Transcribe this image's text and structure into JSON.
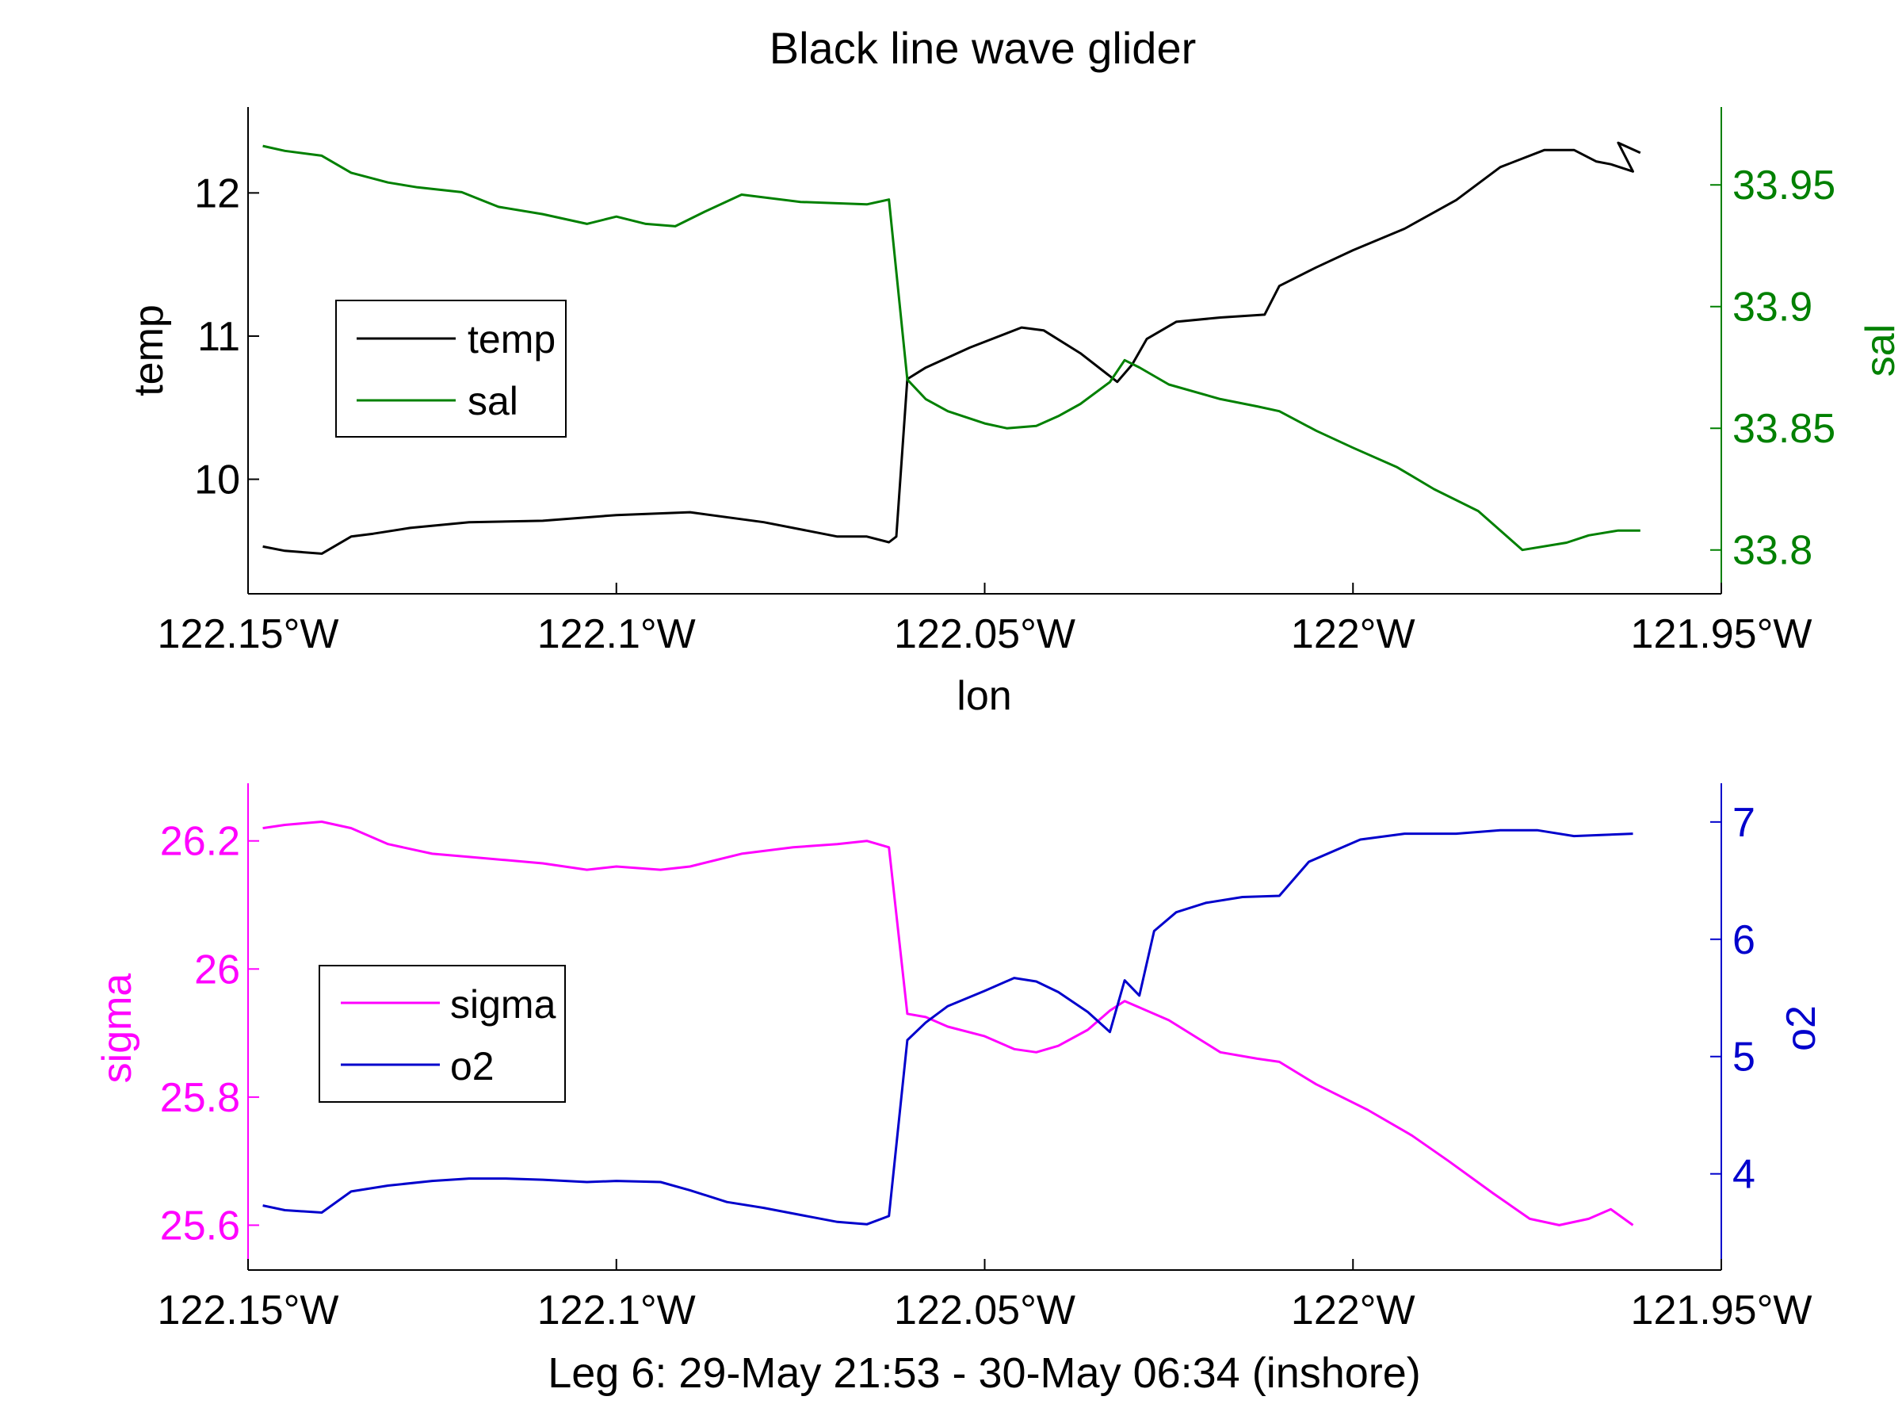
{
  "title": "Black line wave glider",
  "caption": "Leg 6: 29-May 21:53 - 30-May 06:34 (inshore)",
  "colors": {
    "temp": "#000000",
    "sal": "#008000",
    "sigma": "#ff00ff",
    "o2": "#0000cc",
    "axis": "#000000"
  },
  "chart_data": [
    {
      "type": "line",
      "xlabel": "lon",
      "xlim": [
        -122.15,
        -121.95
      ],
      "xticks": [
        -122.15,
        -122.1,
        -122.05,
        -122.0,
        -121.95
      ],
      "xtick_labels": [
        "122.15°W",
        "122.1°W",
        "122.05°W",
        "122°W",
        "121.95°W"
      ],
      "left_axis": {
        "label": "temp",
        "ylim": [
          9.2,
          12.6
        ],
        "ticks": [
          10,
          11,
          12
        ],
        "tick_labels": [
          "10",
          "11",
          "12"
        ]
      },
      "right_axis": {
        "label": "sal",
        "ylim": [
          33.782,
          33.982
        ],
        "ticks": [
          33.8,
          33.85,
          33.9,
          33.95
        ],
        "tick_labels": [
          "33.8",
          "33.85",
          "33.9",
          "33.95"
        ]
      },
      "legend": {
        "placement": "left",
        "entries": [
          "temp",
          "sal"
        ]
      },
      "series": [
        {
          "name": "temp",
          "axis": "left",
          "x": [
            -122.148,
            -122.145,
            -122.14,
            -122.136,
            -122.133,
            -122.128,
            -122.12,
            -122.11,
            -122.1,
            -122.09,
            -122.08,
            -122.07,
            -122.066,
            -122.063,
            -122.062,
            -122.0605,
            -122.058,
            -122.052,
            -122.045,
            -122.042,
            -122.037,
            -122.032,
            -122.03,
            -122.028,
            -122.024,
            -122.018,
            -122.012,
            -122.01,
            -122.005,
            -122.0,
            -121.993,
            -121.986,
            -121.98,
            -121.974,
            -121.97,
            -121.967,
            -121.965,
            -121.962,
            -121.964,
            -121.961
          ],
          "y": [
            9.53,
            9.5,
            9.48,
            9.6,
            9.62,
            9.66,
            9.7,
            9.71,
            9.75,
            9.77,
            9.7,
            9.6,
            9.6,
            9.56,
            9.6,
            10.7,
            10.78,
            10.92,
            11.06,
            11.04,
            10.88,
            10.68,
            10.8,
            10.98,
            11.1,
            11.13,
            11.15,
            11.35,
            11.48,
            11.6,
            11.75,
            11.95,
            12.18,
            12.3,
            12.3,
            12.22,
            12.2,
            12.15,
            12.35,
            12.28
          ]
        },
        {
          "name": "sal",
          "axis": "right",
          "x": [
            -122.148,
            -122.145,
            -122.14,
            -122.136,
            -122.131,
            -122.127,
            -122.121,
            -122.116,
            -122.11,
            -122.104,
            -122.1,
            -122.096,
            -122.092,
            -122.088,
            -122.083,
            -122.075,
            -122.066,
            -122.063,
            -122.0605,
            -122.058,
            -122.055,
            -122.05,
            -122.047,
            -122.043,
            -122.04,
            -122.037,
            -122.033,
            -122.031,
            -122.029,
            -122.025,
            -122.018,
            -122.013,
            -122.01,
            -122.005,
            -122.0,
            -121.994,
            -121.989,
            -121.983,
            -121.977,
            -121.971,
            -121.968,
            -121.964,
            -121.961
          ],
          "y": [
            33.966,
            33.964,
            33.962,
            33.955,
            33.951,
            33.949,
            33.947,
            33.941,
            33.938,
            33.934,
            33.937,
            33.934,
            33.933,
            33.939,
            33.946,
            33.943,
            33.942,
            33.944,
            33.87,
            33.862,
            33.857,
            33.852,
            33.85,
            33.851,
            33.855,
            33.86,
            33.869,
            33.878,
            33.875,
            33.868,
            33.862,
            33.859,
            33.857,
            33.849,
            33.842,
            33.834,
            33.825,
            33.816,
            33.8,
            33.803,
            33.806,
            33.808,
            33.808
          ]
        }
      ]
    },
    {
      "type": "line",
      "xlabel": "",
      "xlim": [
        -122.15,
        -121.95
      ],
      "xticks": [
        -122.15,
        -122.1,
        -122.05,
        -122.0,
        -121.95
      ],
      "xtick_labels": [
        "122.15°W",
        "122.1°W",
        "122.05°W",
        "122°W",
        "121.95°W"
      ],
      "left_axis": {
        "label": "sigma",
        "ylim": [
          25.53,
          26.29
        ],
        "ticks": [
          25.6,
          25.8,
          26.0,
          26.2
        ],
        "tick_labels": [
          "25.6",
          "25.8",
          "26",
          "26.2"
        ]
      },
      "right_axis": {
        "label": "o2",
        "ylim": [
          3.18,
          7.33
        ],
        "ticks": [
          4,
          5,
          6,
          7
        ],
        "tick_labels": [
          "4",
          "5",
          "6",
          "7"
        ]
      },
      "legend": {
        "placement": "left",
        "entries": [
          "sigma",
          "o2"
        ]
      },
      "series": [
        {
          "name": "sigma",
          "axis": "left",
          "x": [
            -122.148,
            -122.145,
            -122.14,
            -122.136,
            -122.131,
            -122.125,
            -122.12,
            -122.115,
            -122.11,
            -122.104,
            -122.1,
            -122.094,
            -122.09,
            -122.083,
            -122.076,
            -122.07,
            -122.066,
            -122.063,
            -122.0605,
            -122.058,
            -122.055,
            -122.05,
            -122.046,
            -122.043,
            -122.04,
            -122.036,
            -122.033,
            -122.031,
            -122.029,
            -122.025,
            -122.018,
            -122.013,
            -122.01,
            -122.005,
            -121.998,
            -121.992,
            -121.987,
            -121.981,
            -121.976,
            -121.972,
            -121.968,
            -121.965,
            -121.962
          ],
          "y": [
            26.22,
            26.225,
            26.23,
            26.22,
            26.195,
            26.18,
            26.175,
            26.17,
            26.165,
            26.155,
            26.16,
            26.155,
            26.16,
            26.18,
            26.19,
            26.195,
            26.2,
            26.19,
            25.93,
            25.925,
            25.91,
            25.895,
            25.875,
            25.87,
            25.88,
            25.905,
            25.935,
            25.95,
            25.94,
            25.92,
            25.87,
            25.86,
            25.855,
            25.82,
            25.78,
            25.74,
            25.7,
            25.65,
            25.61,
            25.6,
            25.61,
            25.625,
            25.6
          ]
        },
        {
          "name": "o2",
          "axis": "right",
          "x": [
            -122.148,
            -122.145,
            -122.14,
            -122.136,
            -122.131,
            -122.125,
            -122.12,
            -122.115,
            -122.11,
            -122.104,
            -122.1,
            -122.094,
            -122.09,
            -122.085,
            -122.08,
            -122.075,
            -122.07,
            -122.066,
            -122.063,
            -122.0605,
            -122.058,
            -122.055,
            -122.05,
            -122.046,
            -122.043,
            -122.04,
            -122.036,
            -122.033,
            -122.031,
            -122.029,
            -122.027,
            -122.024,
            -122.02,
            -122.015,
            -122.01,
            -122.006,
            -121.999,
            -121.993,
            -121.986,
            -121.98,
            -121.975,
            -121.97,
            -121.966,
            -121.962
          ],
          "y": [
            3.73,
            3.69,
            3.67,
            3.85,
            3.9,
            3.94,
            3.96,
            3.96,
            3.95,
            3.93,
            3.94,
            3.93,
            3.86,
            3.76,
            3.71,
            3.65,
            3.59,
            3.57,
            3.64,
            5.14,
            5.29,
            5.43,
            5.56,
            5.67,
            5.64,
            5.55,
            5.38,
            5.21,
            5.65,
            5.52,
            6.07,
            6.23,
            6.31,
            6.36,
            6.37,
            6.66,
            6.85,
            6.9,
            6.9,
            6.93,
            6.93,
            6.88,
            6.89,
            6.9
          ]
        }
      ]
    }
  ]
}
